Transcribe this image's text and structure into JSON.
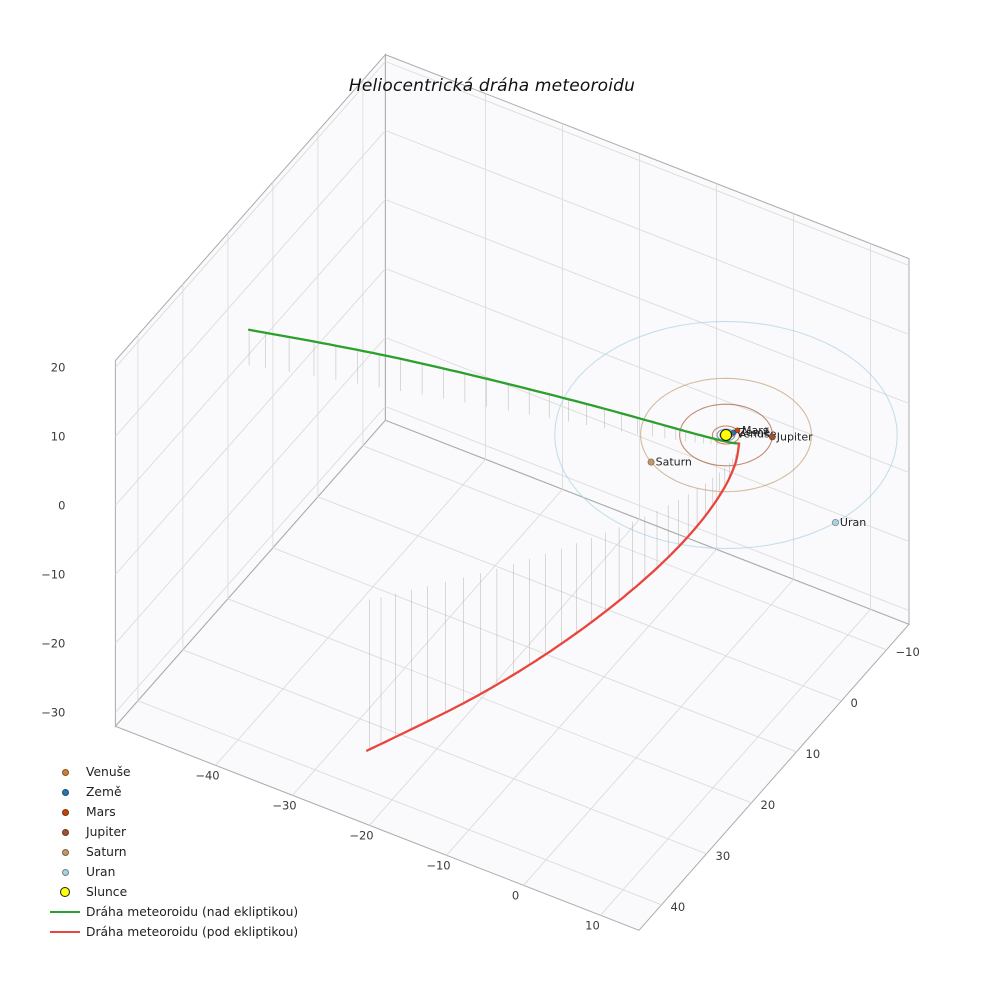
{
  "chart_data": {
    "type": "line",
    "title": "Heliocentrická dráha meteoroidu",
    "grid": true,
    "legend_position": "lower left",
    "axes": {
      "x": {
        "range": [
          -53,
          15
        ],
        "ticks": [
          -40,
          -30,
          -20,
          -10,
          0,
          10
        ]
      },
      "y": {
        "range": [
          -15,
          45
        ],
        "ticks": [
          -10,
          0,
          10,
          20,
          30,
          40
        ]
      },
      "z": {
        "range": [
          -32,
          21
        ],
        "ticks": [
          -30,
          -20,
          -10,
          0,
          10,
          20
        ]
      }
    },
    "sun": {
      "label": "Slunce",
      "color": "#ffff00",
      "edge_color": "#1a1a1a",
      "position": [
        0,
        0,
        0
      ]
    },
    "planets": [
      {
        "label": "Venuše",
        "color": "#cc8033",
        "orbit_color": "#cc8033",
        "orbit_radius": 0.72,
        "angle_deg": -45
      },
      {
        "label": "Země",
        "color": "#1f77b4",
        "orbit_color": "#1f77b4",
        "orbit_radius": 1.0,
        "angle_deg": -58
      },
      {
        "label": "Mars",
        "color": "#c1440e",
        "orbit_color": "#c1440e",
        "orbit_radius": 1.52,
        "angle_deg": -62
      },
      {
        "label": "Jupiter",
        "color": "#a0522d",
        "orbit_color": "#a0522d",
        "orbit_radius": 5.2,
        "angle_deg": -27
      },
      {
        "label": "Saturn",
        "color": "#c0996b",
        "orbit_color": "#c0996b",
        "orbit_radius": 9.58,
        "angle_deg": 121
      },
      {
        "label": "Uran",
        "color": "#a9d1e4",
        "orbit_color": "#a9d1e4",
        "orbit_radius": 19.2,
        "angle_deg": 20
      }
    ],
    "meteoroid": {
      "above_ecliptic": {
        "label": "Dráha meteoroidu (nad ekliptikou)",
        "color": "#2ca02c",
        "points": [
          [
            -52.0,
            17.0,
            5.2
          ],
          [
            -44.0,
            14.6,
            5.0
          ],
          [
            -36.0,
            12.3,
            4.7
          ],
          [
            -28.0,
            10.1,
            4.2
          ],
          [
            -20.0,
            8.0,
            3.6
          ],
          [
            -13.0,
            6.1,
            2.9
          ],
          [
            -7.0,
            4.4,
            2.1
          ],
          [
            -3.0,
            3.1,
            1.4
          ],
          [
            -0.2,
            2.0,
            0.8
          ],
          [
            1.3,
            1.2,
            0.35
          ],
          [
            2.0,
            0.5,
            0.0
          ]
        ]
      },
      "below_ecliptic": {
        "label": "Dráha meteoroidu (pod ekliptikou)",
        "color": "#e8453c",
        "points": [
          [
            2.0,
            0.5,
            0.0
          ],
          [
            2.6,
            2.5,
            -1.4
          ],
          [
            2.6,
            5.5,
            -3.2
          ],
          [
            1.8,
            9.5,
            -5.4
          ],
          [
            0.2,
            14.0,
            -7.8
          ],
          [
            -2.2,
            19.0,
            -10.4
          ],
          [
            -5.2,
            24.3,
            -13.0
          ],
          [
            -8.8,
            29.8,
            -15.6
          ],
          [
            -12.8,
            35.2,
            -18.0
          ],
          [
            -17.2,
            40.5,
            -20.2
          ],
          [
            -20.6,
            44.5,
            -21.8
          ]
        ]
      }
    },
    "stems": {
      "color": "#9a9a9a",
      "drop_to": "z=0"
    }
  }
}
